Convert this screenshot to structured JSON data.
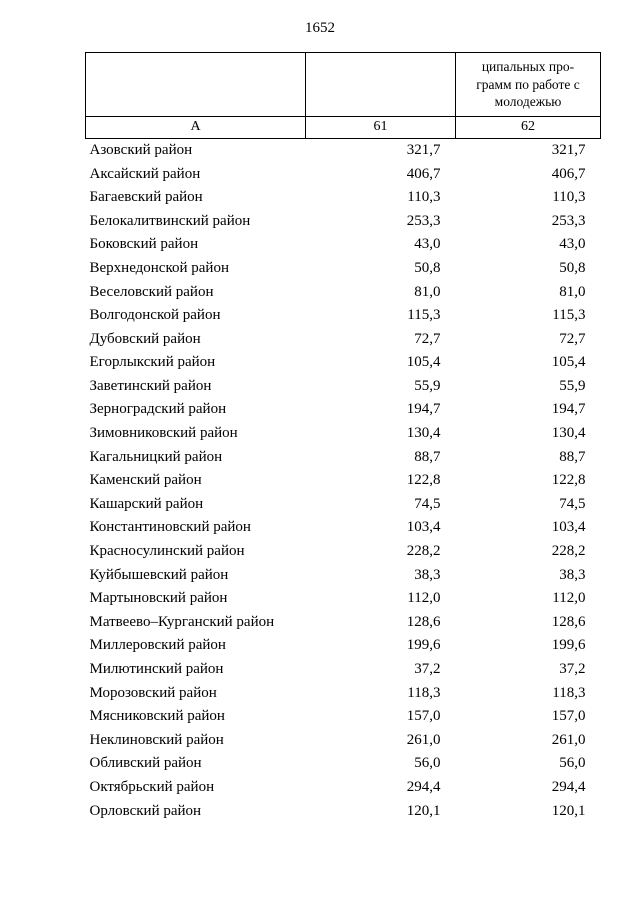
{
  "page": {
    "number": "1652"
  },
  "table": {
    "header": {
      "col3_lines": [
        "ципальных про-",
        "грамм по работе с",
        "молодежью"
      ],
      "col_ids": [
        "А",
        "61",
        "62"
      ]
    },
    "rows": [
      {
        "name": "Азовский район",
        "v61": "321,7",
        "v62": "321,7"
      },
      {
        "name": "Аксайский район",
        "v61": "406,7",
        "v62": "406,7"
      },
      {
        "name": "Багаевский район",
        "v61": "110,3",
        "v62": "110,3"
      },
      {
        "name": "Белокалитвинский район",
        "v61": "253,3",
        "v62": "253,3"
      },
      {
        "name": "Боковский район",
        "v61": "43,0",
        "v62": "43,0"
      },
      {
        "name": "Верхнедонской район",
        "v61": "50,8",
        "v62": "50,8"
      },
      {
        "name": "Веселовский район",
        "v61": "81,0",
        "v62": "81,0"
      },
      {
        "name": "Волгодонской район",
        "v61": "115,3",
        "v62": "115,3"
      },
      {
        "name": "Дубовский район",
        "v61": "72,7",
        "v62": "72,7"
      },
      {
        "name": "Егорлыкский район",
        "v61": "105,4",
        "v62": "105,4"
      },
      {
        "name": "Заветинский район",
        "v61": "55,9",
        "v62": "55,9"
      },
      {
        "name": "Зерноградский район",
        "v61": "194,7",
        "v62": "194,7"
      },
      {
        "name": "Зимовниковский район",
        "v61": "130,4",
        "v62": "130,4"
      },
      {
        "name": "Кагальницкий район",
        "v61": "88,7",
        "v62": "88,7"
      },
      {
        "name": "Каменский район",
        "v61": "122,8",
        "v62": "122,8"
      },
      {
        "name": "Кашарский район",
        "v61": "74,5",
        "v62": "74,5"
      },
      {
        "name": "Константиновский район",
        "v61": "103,4",
        "v62": "103,4"
      },
      {
        "name": "Красносулинский район",
        "v61": "228,2",
        "v62": "228,2"
      },
      {
        "name": "Куйбышевский район",
        "v61": "38,3",
        "v62": "38,3"
      },
      {
        "name": "Мартыновский район",
        "v61": "112,0",
        "v62": "112,0"
      },
      {
        "name": "Матвеево–Курганский район",
        "v61": "128,6",
        "v62": "128,6"
      },
      {
        "name": "Миллеровский район",
        "v61": "199,6",
        "v62": "199,6"
      },
      {
        "name": "Милютинский район",
        "v61": "37,2",
        "v62": "37,2"
      },
      {
        "name": "Морозовский район",
        "v61": "118,3",
        "v62": "118,3"
      },
      {
        "name": "Мясниковский район",
        "v61": "157,0",
        "v62": "157,0"
      },
      {
        "name": "Неклиновский район",
        "v61": "261,0",
        "v62": "261,0"
      },
      {
        "name": "Обливский район",
        "v61": "56,0",
        "v62": "56,0"
      },
      {
        "name": "Октябрьский район",
        "v61": "294,4",
        "v62": "294,4"
      },
      {
        "name": "Орловский район",
        "v61": "120,1",
        "v62": "120,1"
      }
    ]
  }
}
